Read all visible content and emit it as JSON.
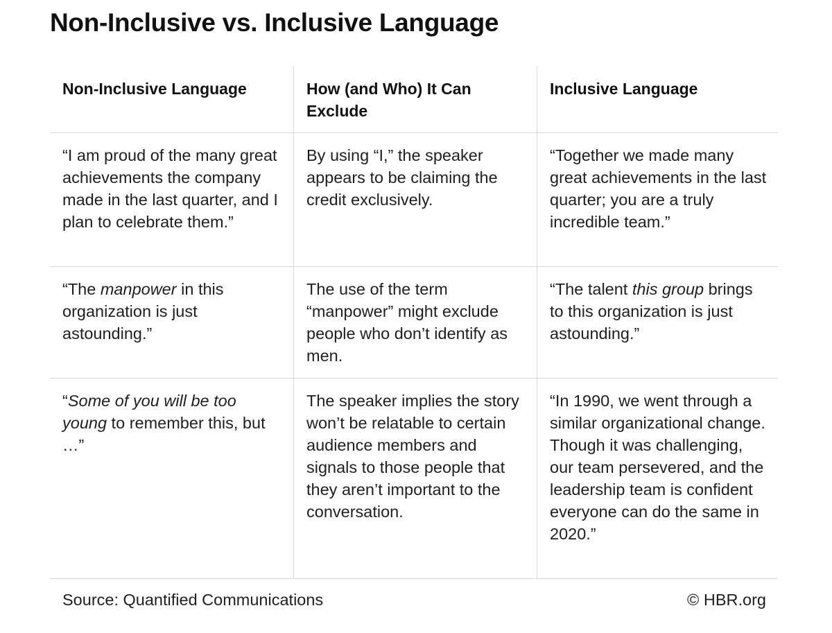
{
  "title": "Non-Inclusive vs. Inclusive Language",
  "table": {
    "headers": [
      "Non-Inclusive Language",
      "How (and Who) It Can Exclude",
      "Inclusive Language"
    ],
    "rows": [
      {
        "non_inclusive": [
          "“I am proud of the many great achievements the company made in the last quarter, and I plan to celebrate them.”"
        ],
        "how": [
          "By using “I,” the speaker appears to be claiming the credit exclusively."
        ],
        "inclusive": [
          "“Together we made many great achievements in the last quarter; you are a truly incredible team.”"
        ]
      },
      {
        "non_inclusive": [
          "“The ",
          "manpower",
          " in this organization is just astounding.”"
        ],
        "how": [
          "The use of the term “manpower” might exclude people who don’t identify as men."
        ],
        "inclusive": [
          "“The talent ",
          "this group",
          " brings to this organization is just astounding.”"
        ]
      },
      {
        "non_inclusive": [
          "“",
          "Some of you will be too young",
          " to remember this, but …”"
        ],
        "how": [
          "The speaker implies the story won’t be relatable to certain audience members and signals to those people that they aren’t important to the conversation."
        ],
        "inclusive": [
          "“In 1990, we went through a similar organizational change. Though it was challenging, our team persevered, and the leadership team is confident everyone can do the same in 2020.”"
        ]
      }
    ]
  },
  "footer": {
    "source": "Source: Quantified Communications",
    "credit": "© HBR.org"
  }
}
